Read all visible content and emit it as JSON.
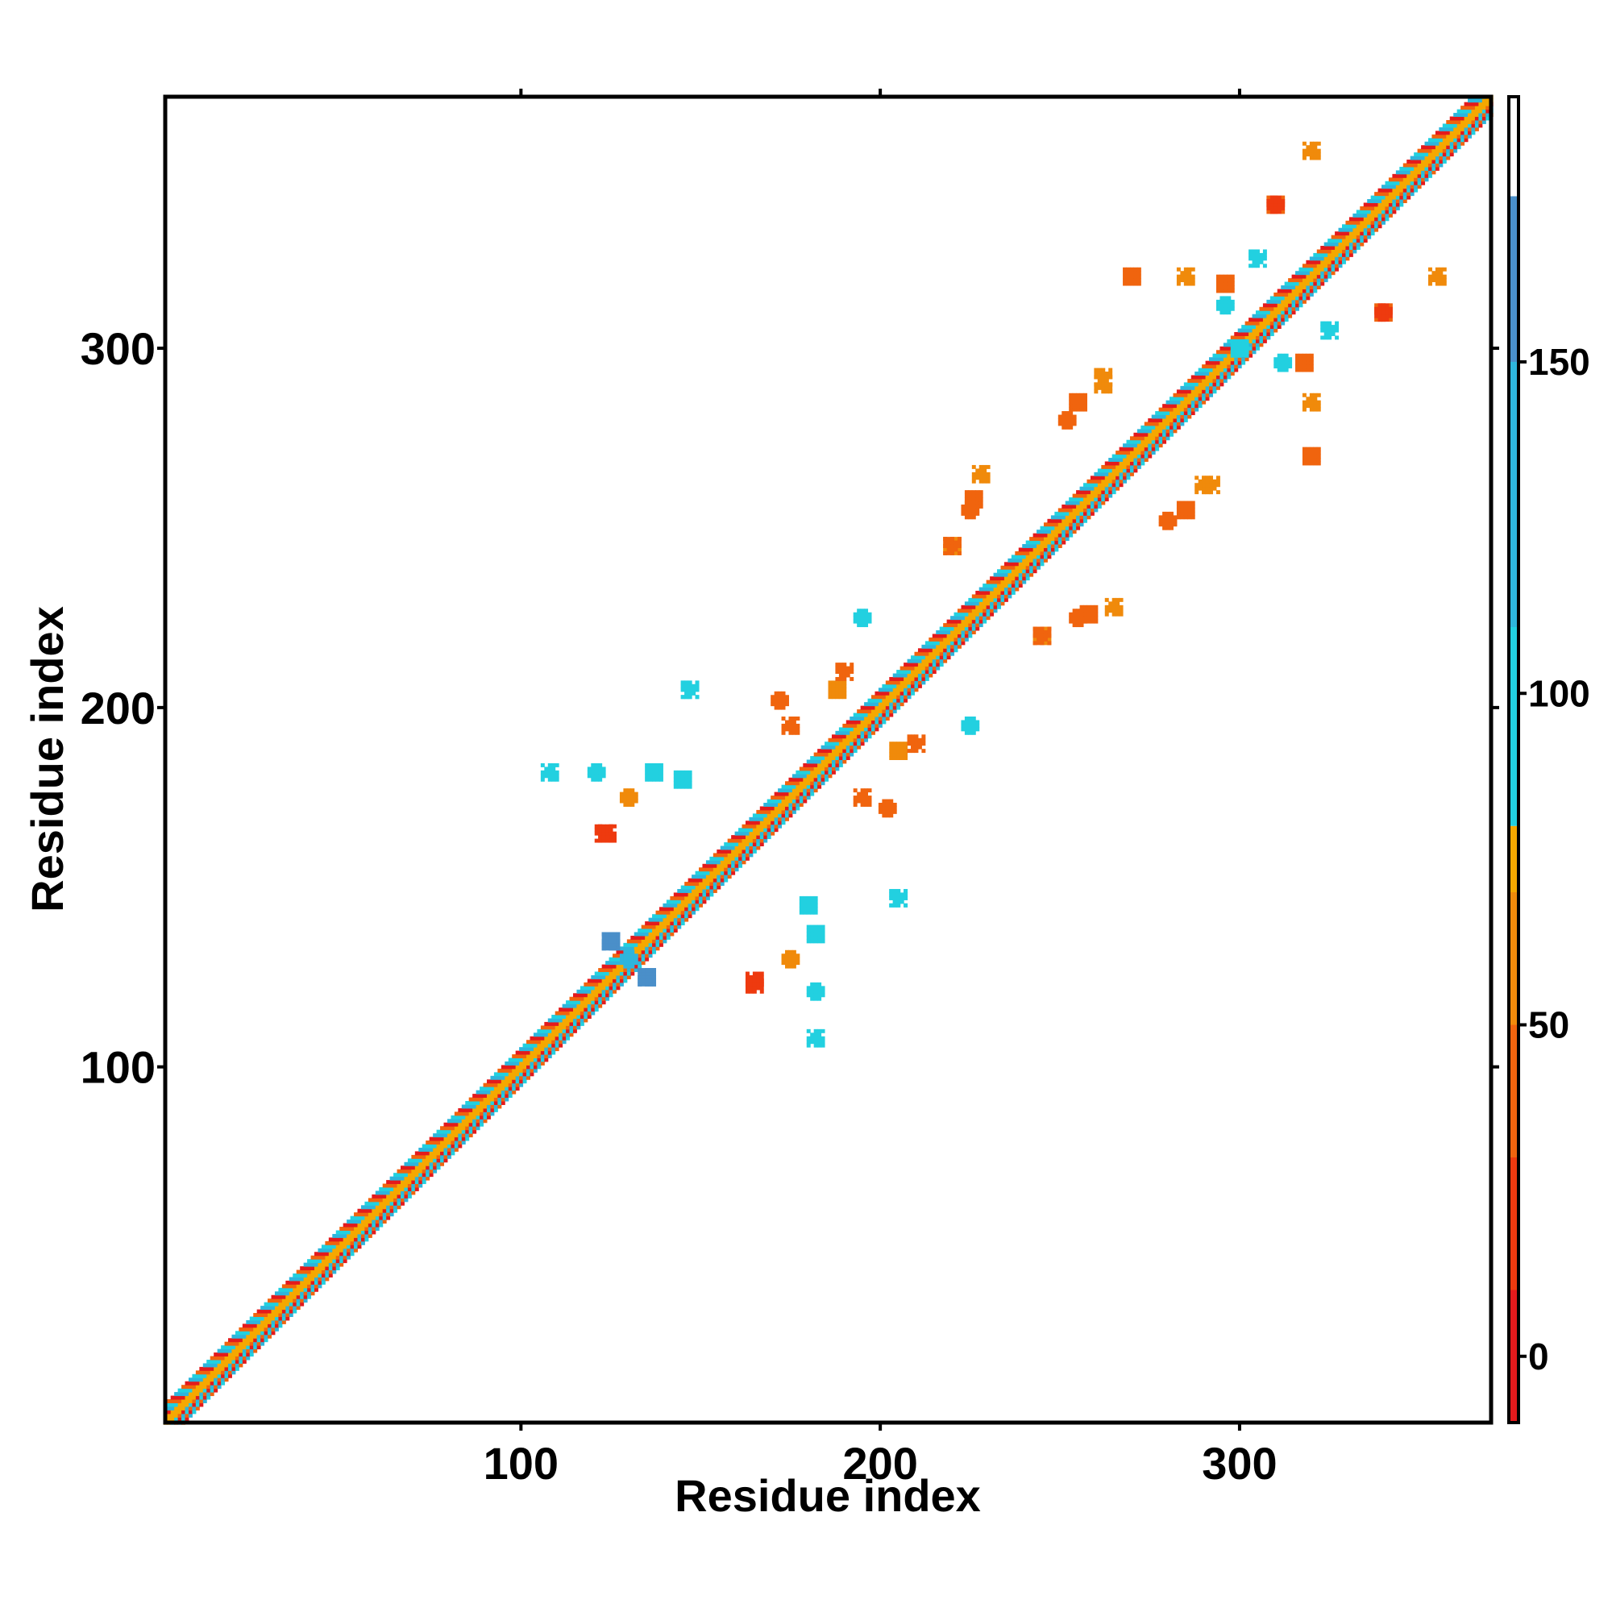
{
  "chart_data": {
    "type": "heatmap",
    "title": "",
    "xlabel": "Residue index",
    "ylabel": "Residue index",
    "xlim": [
      1,
      370
    ],
    "ylim": [
      1,
      370
    ],
    "x_ticks": [
      100,
      200,
      300
    ],
    "y_ticks": [
      100,
      200,
      300
    ],
    "grid": false,
    "symmetric": true,
    "colorbar": {
      "range": [
        -10,
        190
      ],
      "ticks": [
        0,
        50,
        100,
        150
      ],
      "bands": [
        {
          "from": -10,
          "to": 10,
          "color": "#e31a1c"
        },
        {
          "from": 10,
          "to": 30,
          "color": "#ee3a0f"
        },
        {
          "from": 30,
          "to": 50,
          "color": "#f0640e"
        },
        {
          "from": 50,
          "to": 70,
          "color": "#f08a0b"
        },
        {
          "from": 70,
          "to": 80,
          "color": "#f5a800"
        },
        {
          "from": 80,
          "to": 110,
          "color": "#22d0e0"
        },
        {
          "from": 110,
          "to": 150,
          "color": "#2eb5dc"
        },
        {
          "from": 150,
          "to": 175,
          "color": "#4a8fc9"
        },
        {
          "from": 175,
          "to": 190,
          "color": "#ffffff"
        }
      ]
    },
    "diagonal": {
      "from": 1,
      "to": 370,
      "band_width": 5,
      "inner_color": "#f5a800",
      "stripe_colors": [
        "#e31a1c",
        "#f0640e",
        "#22d0e0",
        "#2eb5dc"
      ]
    },
    "off_diagonal_clusters": [
      {
        "x": 121,
        "y": 182,
        "value": 100
      },
      {
        "x": 124,
        "y": 165,
        "value": 20
      },
      {
        "x": 137,
        "y": 182,
        "value": 100
      },
      {
        "x": 147,
        "y": 205,
        "value": 100
      },
      {
        "x": 130,
        "y": 130,
        "value": 140
      },
      {
        "x": 125,
        "y": 135,
        "value": 150
      },
      {
        "x": 135,
        "y": 125,
        "value": 150
      },
      {
        "x": 165,
        "y": 123,
        "value": 20
      },
      {
        "x": 175,
        "y": 130,
        "value": 60
      },
      {
        "x": 182,
        "y": 108,
        "value": 100
      },
      {
        "x": 180,
        "y": 145,
        "value": 100
      },
      {
        "x": 205,
        "y": 147,
        "value": 100
      },
      {
        "x": 202,
        "y": 172,
        "value": 40
      },
      {
        "x": 175,
        "y": 195,
        "value": 40
      },
      {
        "x": 188,
        "y": 205,
        "value": 60
      },
      {
        "x": 210,
        "y": 190,
        "value": 40
      },
      {
        "x": 225,
        "y": 195,
        "value": 100
      },
      {
        "x": 220,
        "y": 245,
        "value": 60
      },
      {
        "x": 226,
        "y": 258,
        "value": 40
      },
      {
        "x": 245,
        "y": 220,
        "value": 40
      },
      {
        "x": 255,
        "y": 225,
        "value": 40
      },
      {
        "x": 265,
        "y": 228,
        "value": 60
      },
      {
        "x": 255,
        "y": 285,
        "value": 40
      },
      {
        "x": 262,
        "y": 292,
        "value": 60
      },
      {
        "x": 280,
        "y": 252,
        "value": 30
      },
      {
        "x": 290,
        "y": 262,
        "value": 60
      },
      {
        "x": 296,
        "y": 318,
        "value": 40
      },
      {
        "x": 305,
        "y": 325,
        "value": 100
      },
      {
        "x": 312,
        "y": 296,
        "value": 100
      },
      {
        "x": 320,
        "y": 285,
        "value": 60
      },
      {
        "x": 320,
        "y": 270,
        "value": 40
      },
      {
        "x": 310,
        "y": 340,
        "value": 30
      },
      {
        "x": 340,
        "y": 310,
        "value": 20
      },
      {
        "x": 355,
        "y": 320,
        "value": 60
      },
      {
        "x": 300,
        "y": 300,
        "value": 100
      }
    ]
  }
}
